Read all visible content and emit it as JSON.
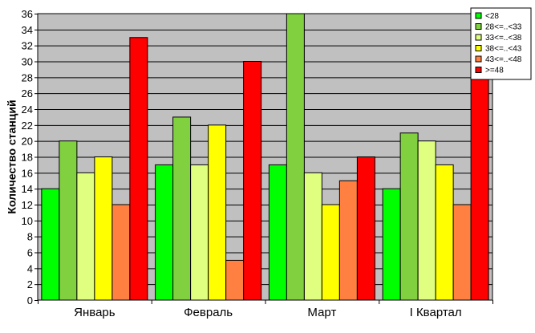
{
  "chart_data": {
    "type": "bar",
    "title": "",
    "xlabel": "",
    "ylabel": "Количество станций",
    "ylim": [
      0,
      36
    ],
    "ytick_step": 2,
    "grid": true,
    "legend_position": "top-right",
    "categories": [
      "Январь",
      "Февраль",
      "Март",
      "I Квартал"
    ],
    "series": [
      {
        "name": "<28",
        "color": "#00ff00",
        "values": [
          14,
          17,
          17,
          14
        ]
      },
      {
        "name": "28<=..<33",
        "color": "#80d040",
        "values": [
          20,
          23,
          36,
          21
        ]
      },
      {
        "name": "33<=..<38",
        "color": "#e0ff80",
        "values": [
          16,
          17,
          16,
          20
        ]
      },
      {
        "name": "38<=..<43",
        "color": "#ffff00",
        "values": [
          18,
          22,
          12,
          17
        ]
      },
      {
        "name": "43<=..<48",
        "color": "#ff8040",
        "values": [
          12,
          5,
          15,
          12
        ]
      },
      {
        "name": ">=48",
        "color": "#ff0000",
        "values": [
          33,
          30,
          18,
          29
        ]
      }
    ]
  },
  "colors": {
    "plot_background": "#c0c0c0",
    "grid": "#000000",
    "bar_border": "#000000"
  }
}
